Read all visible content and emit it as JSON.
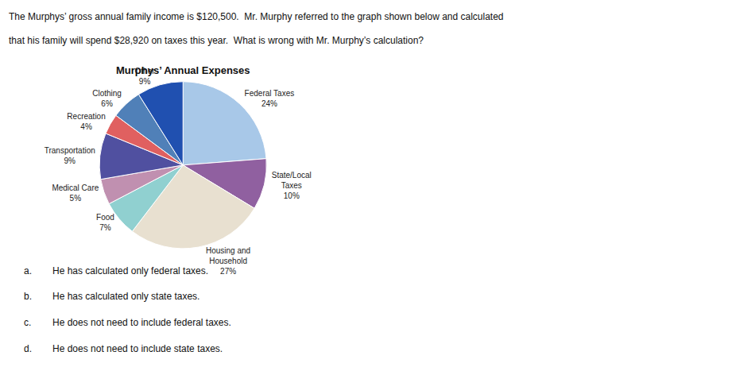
{
  "chart_data": {
    "type": "pie",
    "title": "Murphys’ Annual Expenses",
    "categories": [
      "Federal Taxes",
      "State/Local\nTaxes",
      "Housing and\nHousehold",
      "Food",
      "Medical Care",
      "Transportation",
      "Recreation",
      "Clothing",
      "Other"
    ],
    "values": [
      24,
      10,
      27,
      7,
      5,
      9,
      4,
      6,
      9
    ],
    "value_labels": [
      "24%",
      "10%",
      "27%",
      "7%",
      "5%",
      "9%",
      "4%",
      "6%",
      "9%"
    ],
    "colors": [
      "#a8c8e8",
      "#9060a0",
      "#e8e0d0",
      "#90d0d0",
      "#c090b0",
      "#5050a0",
      "#e06060",
      "#5080b8",
      "#2050b0"
    ],
    "data_labels": true,
    "annotations": [
      [
        "The Murphys’ gross annual family income is $120,500.  Mr. Murphy referred to the graph shown below and calculated"
      ],
      [
        "that his family will spend $28,920 on taxes this year.  What is wrong with Mr. Murphy’s calculation?"
      ],
      [
        "a.",
        "He has calculated only federal taxes."
      ],
      [
        "b.",
        "He has calculated only state taxes."
      ],
      [
        "c.",
        "He does not need to include federal taxes."
      ],
      [
        "d.",
        "He does not need to include state taxes."
      ]
    ]
  }
}
